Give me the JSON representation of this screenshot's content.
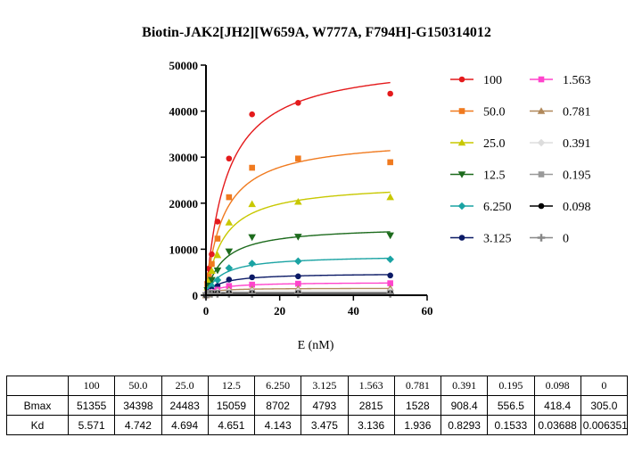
{
  "chart_data": {
    "type": "scatter",
    "title": "Biotin-JAK2[JH2][W659A, W777A, F794H]-G150314012",
    "xlabel": "E (nM)",
    "ylabel": "",
    "xlim": [
      0,
      60
    ],
    "ylim": [
      0,
      50000
    ],
    "x_ticks": [
      0,
      20,
      40,
      60
    ],
    "y_ticks": [
      0,
      10000,
      20000,
      30000,
      40000,
      50000
    ],
    "x_tick_labels": [
      "0",
      "20",
      "40",
      "60"
    ],
    "y_tick_labels": [
      "0",
      "10000",
      "20000",
      "30000",
      "40000",
      "50000"
    ],
    "x": [
      0,
      0.39,
      0.78,
      1.56,
      3.13,
      6.25,
      12.5,
      25,
      50
    ],
    "legend_position": "right",
    "series": [
      {
        "name": "100",
        "color": "#e41a1c",
        "marker": "circle",
        "bmax": 51355,
        "kd": 5.571,
        "values": [
          0,
          2800,
          5800,
          8900,
          16000,
          29700,
          39300,
          41800,
          43800
        ]
      },
      {
        "name": "50.0",
        "color": "#f07a1f",
        "marker": "square",
        "bmax": 34398,
        "kd": 4.742,
        "values": [
          0,
          2400,
          4300,
          6800,
          12300,
          21300,
          27700,
          29700,
          28900
        ]
      },
      {
        "name": "25.0",
        "color": "#c8c800",
        "marker": "triangle-up",
        "bmax": 24483,
        "kd": 4.694,
        "values": [
          0,
          1700,
          3300,
          5300,
          8700,
          15800,
          19800,
          20300,
          21300
        ]
      },
      {
        "name": "12.5",
        "color": "#1d6b1d",
        "marker": "triangle-down",
        "bmax": 15059,
        "kd": 4.651,
        "values": [
          0,
          1100,
          2100,
          3300,
          5400,
          9500,
          12600,
          12700,
          13000
        ]
      },
      {
        "name": "6.250",
        "color": "#1aa3a3",
        "marker": "diamond",
        "bmax": 8702,
        "kd": 4.143,
        "values": [
          0,
          600,
          1200,
          2000,
          3300,
          5900,
          6900,
          7400,
          7800
        ]
      },
      {
        "name": "3.125",
        "color": "#0b1a66",
        "marker": "circle",
        "bmax": 4793,
        "kd": 3.475,
        "values": [
          0,
          400,
          700,
          1200,
          2000,
          3400,
          3900,
          4100,
          4300
        ]
      },
      {
        "name": "1.563",
        "color": "#ff44cc",
        "marker": "square",
        "bmax": 2815,
        "kd": 3.136,
        "values": [
          0,
          250,
          450,
          700,
          1200,
          2000,
          2300,
          2500,
          2600
        ]
      },
      {
        "name": "0.781",
        "color": "#b0885a",
        "marker": "triangle-up",
        "bmax": 1528,
        "kd": 1.936,
        "values": [
          0,
          200,
          400,
          600,
          900,
          1200,
          1300,
          1400,
          1500
        ]
      },
      {
        "name": "0.391",
        "color": "#dddddd",
        "marker": "diamond",
        "bmax": 908.4,
        "kd": 0.8293,
        "values": [
          0,
          200,
          400,
          600,
          700,
          800,
          850,
          880,
          900
        ]
      },
      {
        "name": "0.195",
        "color": "#999999",
        "marker": "square",
        "bmax": 556.5,
        "kd": 0.1533,
        "values": [
          0,
          400,
          450,
          500,
          520,
          540,
          550,
          550,
          560
        ]
      },
      {
        "name": "0.098",
        "color": "#000000",
        "marker": "circle",
        "bmax": 418.4,
        "kd": 0.03688,
        "values": [
          0,
          380,
          400,
          410,
          415,
          415,
          418,
          418,
          418
        ]
      },
      {
        "name": "0",
        "color": "#888888",
        "marker": "plus",
        "bmax": 305.0,
        "kd": 0.006351,
        "values": [
          0,
          290,
          300,
          300,
          305,
          305,
          305,
          305,
          305
        ]
      }
    ]
  },
  "table": {
    "headers": [
      "",
      "100",
      "50.0",
      "25.0",
      "12.5",
      "6.250",
      "3.125",
      "1.563",
      "0.781",
      "0.391",
      "0.195",
      "0.098",
      "0"
    ],
    "rows": [
      {
        "label": "Bmax",
        "cells": [
          "51355",
          "34398",
          "24483",
          "15059",
          "8702",
          "4793",
          "2815",
          "1528",
          "908.4",
          "556.5",
          "418.4",
          "305.0"
        ]
      },
      {
        "label": "Kd",
        "cells": [
          "5.571",
          "4.742",
          "4.694",
          "4.651",
          "4.143",
          "3.475",
          "3.136",
          "1.936",
          "0.8293",
          "0.1533",
          "0.03688",
          "0.006351"
        ]
      }
    ]
  }
}
